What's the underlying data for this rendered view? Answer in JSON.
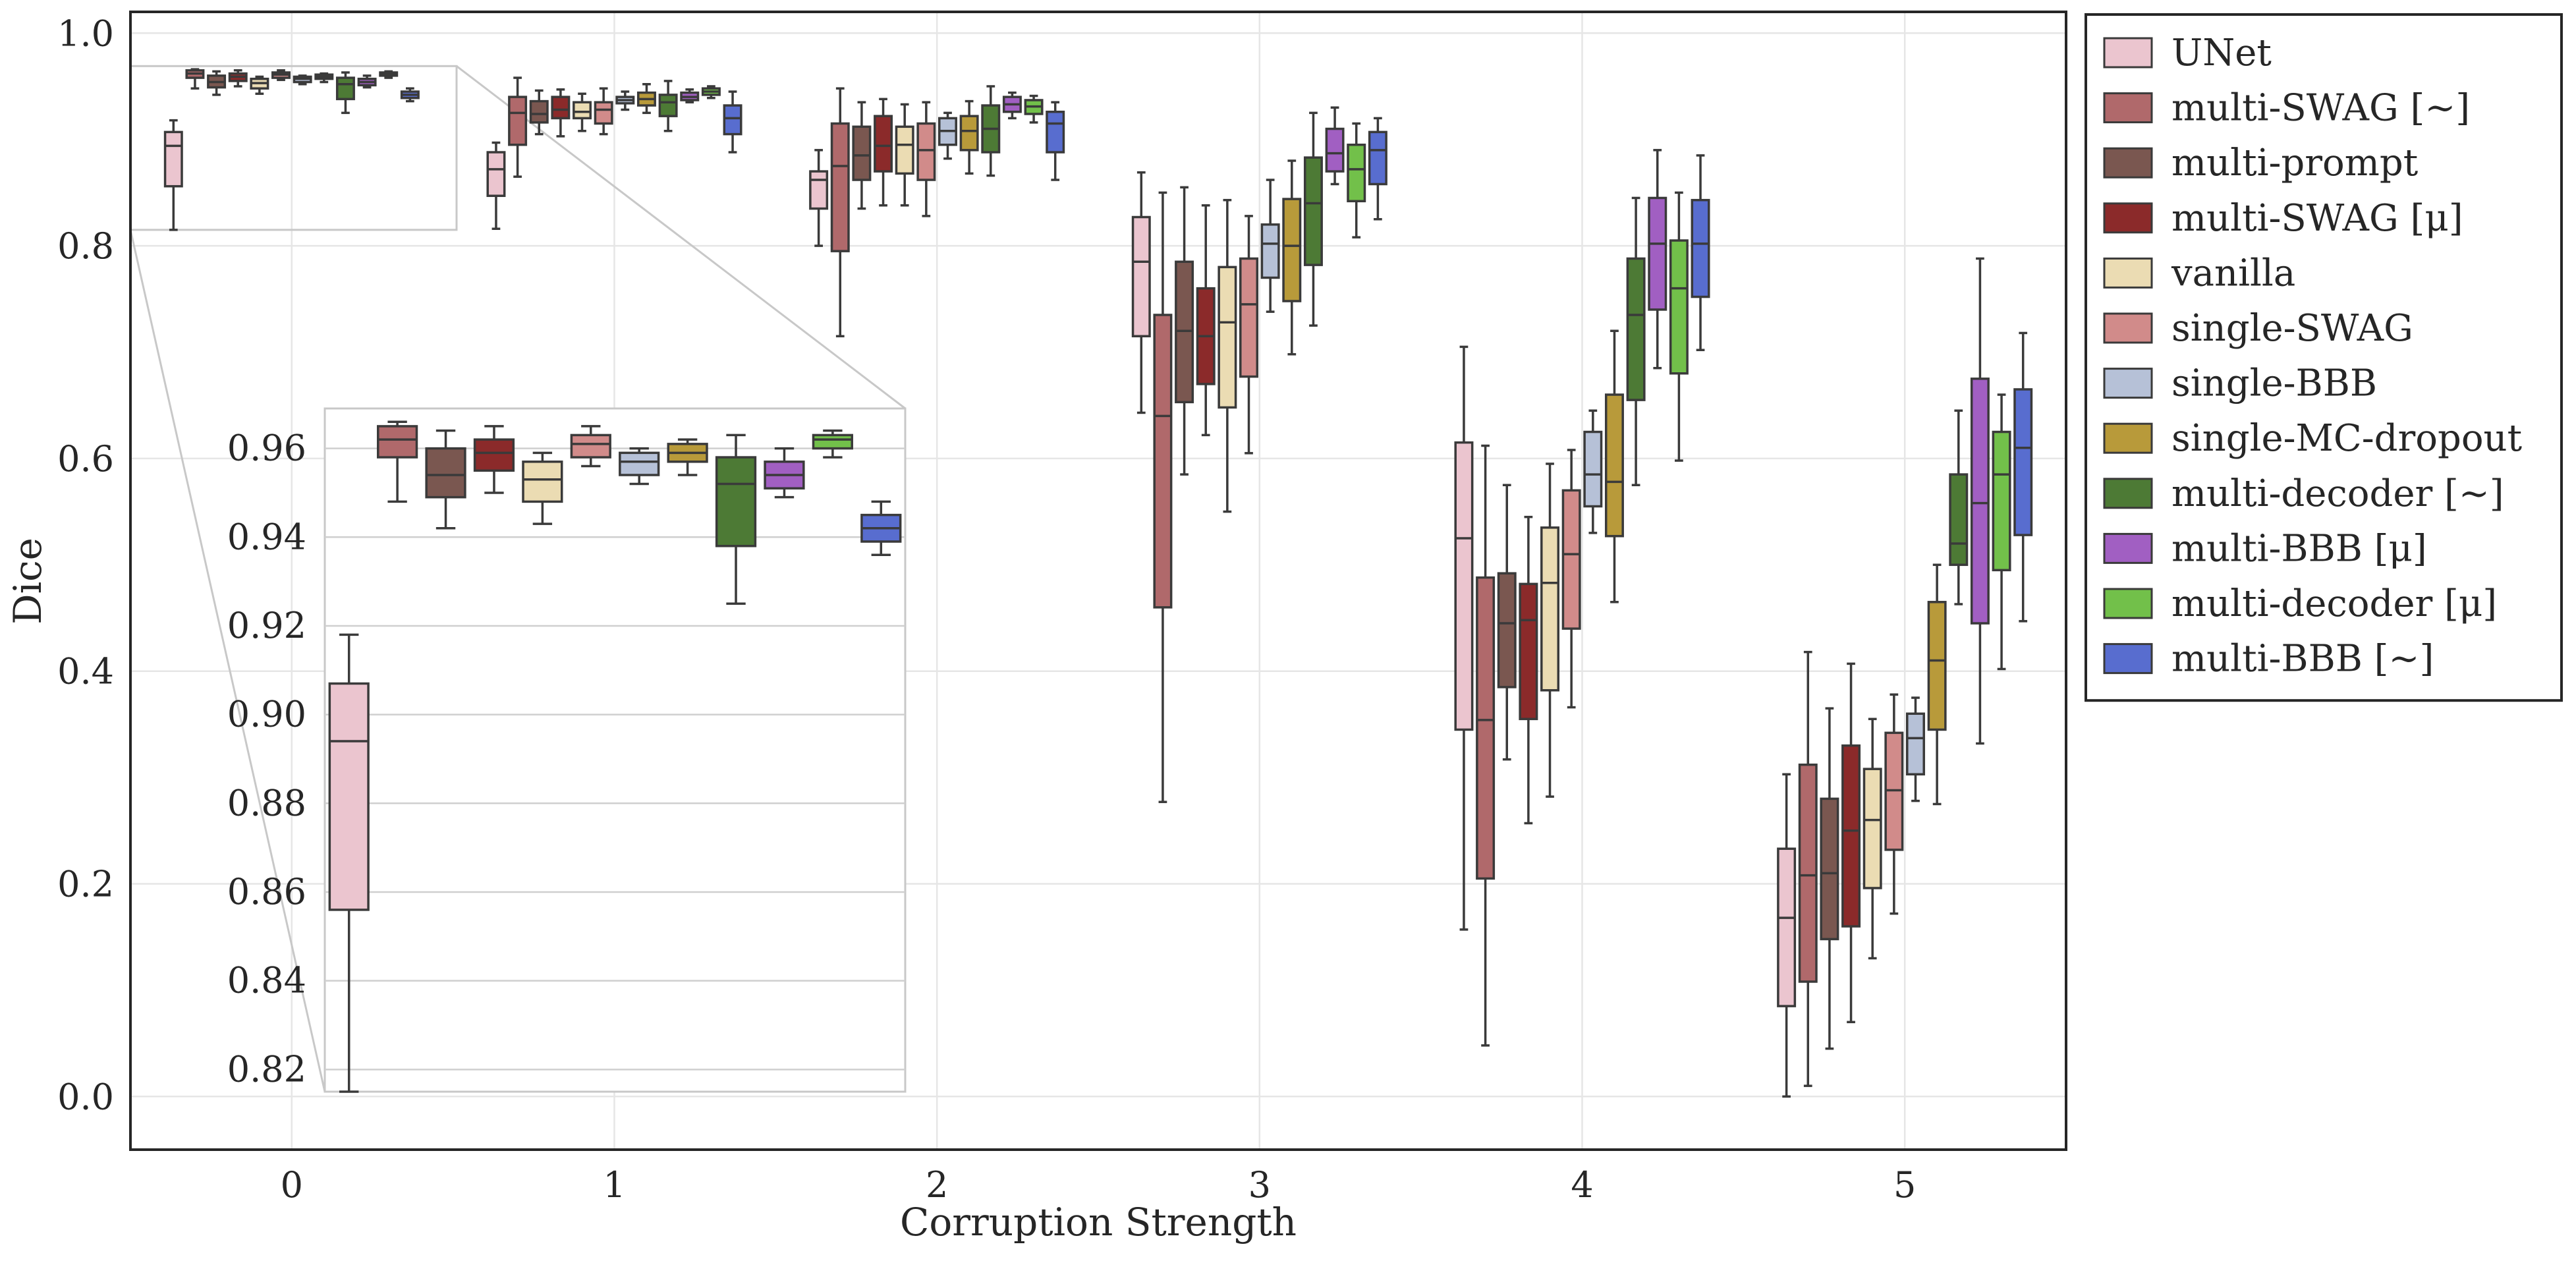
{
  "chart_data": {
    "type": "box",
    "title": "",
    "xlabel": "Corruption Strength",
    "ylabel": "Dice",
    "ylim": [
      -0.05,
      1.02
    ],
    "yticks": [
      0.0,
      0.2,
      0.4,
      0.6,
      0.8,
      1.0
    ],
    "ytick_labels": [
      "0.0",
      "0.2",
      "0.4",
      "0.6",
      "0.8",
      "1.0"
    ],
    "categories": [
      "0",
      "1",
      "2",
      "3",
      "4",
      "5"
    ],
    "grid": true,
    "legend_position": "outside-right",
    "series": [
      {
        "name": "UNet",
        "color": "#ebc5cf",
        "boxes": [
          {
            "whislo": 0.815,
            "q1": 0.856,
            "med": 0.894,
            "q3": 0.907,
            "whishi": 0.918
          },
          {
            "whislo": 0.816,
            "q1": 0.847,
            "med": 0.872,
            "q3": 0.888,
            "whishi": 0.897
          },
          {
            "whislo": 0.8,
            "q1": 0.835,
            "med": 0.862,
            "q3": 0.87,
            "whishi": 0.89
          },
          {
            "whislo": 0.643,
            "q1": 0.715,
            "med": 0.785,
            "q3": 0.827,
            "whishi": 0.869
          },
          {
            "whislo": 0.157,
            "q1": 0.345,
            "med": 0.525,
            "q3": 0.615,
            "whishi": 0.705
          },
          {
            "whislo": 0.0,
            "q1": 0.085,
            "med": 0.168,
            "q3": 0.233,
            "whishi": 0.303
          }
        ]
      },
      {
        "name": "multi-SWAG [~]",
        "color": "#b0696b",
        "boxes": [
          {
            "whislo": 0.948,
            "q1": 0.958,
            "med": 0.962,
            "q3": 0.965,
            "whishi": 0.966
          },
          {
            "whislo": 0.865,
            "q1": 0.895,
            "med": 0.925,
            "q3": 0.94,
            "whishi": 0.958
          },
          {
            "whislo": 0.715,
            "q1": 0.795,
            "med": 0.875,
            "q3": 0.915,
            "whishi": 0.948
          },
          {
            "whislo": 0.277,
            "q1": 0.46,
            "med": 0.64,
            "q3": 0.735,
            "whishi": 0.85
          },
          {
            "whislo": 0.048,
            "q1": 0.205,
            "med": 0.354,
            "q3": 0.488,
            "whishi": 0.612
          },
          {
            "whislo": 0.01,
            "q1": 0.108,
            "med": 0.208,
            "q3": 0.312,
            "whishi": 0.418
          }
        ]
      },
      {
        "name": "multi-prompt",
        "color": "#7a5750",
        "boxes": [
          {
            "whislo": 0.942,
            "q1": 0.949,
            "med": 0.954,
            "q3": 0.96,
            "whishi": 0.964
          },
          {
            "whislo": 0.905,
            "q1": 0.916,
            "med": 0.924,
            "q3": 0.936,
            "whishi": 0.946
          },
          {
            "whislo": 0.835,
            "q1": 0.862,
            "med": 0.885,
            "q3": 0.912,
            "whishi": 0.935
          },
          {
            "whislo": 0.585,
            "q1": 0.653,
            "med": 0.72,
            "q3": 0.785,
            "whishi": 0.855
          },
          {
            "whislo": 0.317,
            "q1": 0.385,
            "med": 0.445,
            "q3": 0.492,
            "whishi": 0.575
          },
          {
            "whislo": 0.045,
            "q1": 0.148,
            "med": 0.21,
            "q3": 0.28,
            "whishi": 0.365
          }
        ]
      },
      {
        "name": "multi-SWAG [μ]",
        "color": "#8b2a2a",
        "boxes": [
          {
            "whislo": 0.95,
            "q1": 0.955,
            "med": 0.959,
            "q3": 0.962,
            "whishi": 0.965
          },
          {
            "whislo": 0.903,
            "q1": 0.92,
            "med": 0.928,
            "q3": 0.94,
            "whishi": 0.947
          },
          {
            "whislo": 0.838,
            "q1": 0.87,
            "med": 0.894,
            "q3": 0.922,
            "whishi": 0.938
          },
          {
            "whislo": 0.622,
            "q1": 0.67,
            "med": 0.715,
            "q3": 0.76,
            "whishi": 0.838
          },
          {
            "whislo": 0.257,
            "q1": 0.355,
            "med": 0.448,
            "q3": 0.482,
            "whishi": 0.545
          },
          {
            "whislo": 0.07,
            "q1": 0.16,
            "med": 0.25,
            "q3": 0.33,
            "whishi": 0.407
          }
        ]
      },
      {
        "name": "vanilla",
        "color": "#ebdcb3",
        "boxes": [
          {
            "whislo": 0.943,
            "q1": 0.948,
            "med": 0.953,
            "q3": 0.957,
            "whishi": 0.959
          },
          {
            "whislo": 0.908,
            "q1": 0.92,
            "med": 0.926,
            "q3": 0.935,
            "whishi": 0.943
          },
          {
            "whislo": 0.838,
            "q1": 0.868,
            "med": 0.895,
            "q3": 0.912,
            "whishi": 0.933
          },
          {
            "whislo": 0.55,
            "q1": 0.648,
            "med": 0.728,
            "q3": 0.78,
            "whishi": 0.843
          },
          {
            "whislo": 0.282,
            "q1": 0.382,
            "med": 0.483,
            "q3": 0.535,
            "whishi": 0.595
          },
          {
            "whislo": 0.13,
            "q1": 0.196,
            "med": 0.26,
            "q3": 0.308,
            "whishi": 0.355
          }
        ]
      },
      {
        "name": "single-SWAG",
        "color": "#d18b8a",
        "boxes": [
          {
            "whislo": 0.956,
            "q1": 0.958,
            "med": 0.961,
            "q3": 0.963,
            "whishi": 0.965
          },
          {
            "whislo": 0.905,
            "q1": 0.915,
            "med": 0.928,
            "q3": 0.935,
            "whishi": 0.948
          },
          {
            "whislo": 0.828,
            "q1": 0.862,
            "med": 0.89,
            "q3": 0.915,
            "whishi": 0.935
          },
          {
            "whislo": 0.605,
            "q1": 0.677,
            "med": 0.745,
            "q3": 0.788,
            "whishi": 0.828
          },
          {
            "whislo": 0.366,
            "q1": 0.44,
            "med": 0.51,
            "q3": 0.57,
            "whishi": 0.608
          },
          {
            "whislo": 0.172,
            "q1": 0.232,
            "med": 0.288,
            "q3": 0.342,
            "whishi": 0.378
          }
        ]
      },
      {
        "name": "single-BBB",
        "color": "#b6c1d7",
        "boxes": [
          {
            "whislo": 0.952,
            "q1": 0.954,
            "med": 0.957,
            "q3": 0.959,
            "whishi": 0.96
          },
          {
            "whislo": 0.928,
            "q1": 0.934,
            "med": 0.937,
            "q3": 0.94,
            "whishi": 0.945
          },
          {
            "whislo": 0.882,
            "q1": 0.895,
            "med": 0.908,
            "q3": 0.92,
            "whishi": 0.925
          },
          {
            "whislo": 0.738,
            "q1": 0.77,
            "med": 0.802,
            "q3": 0.82,
            "whishi": 0.862
          },
          {
            "whislo": 0.53,
            "q1": 0.555,
            "med": 0.585,
            "q3": 0.625,
            "whishi": 0.645
          },
          {
            "whislo": 0.278,
            "q1": 0.303,
            "med": 0.337,
            "q3": 0.36,
            "whishi": 0.375
          }
        ]
      },
      {
        "name": "single-MC-dropout",
        "color": "#b89a3a",
        "boxes": [
          {
            "whislo": 0.954,
            "q1": 0.957,
            "med": 0.959,
            "q3": 0.961,
            "whishi": 0.962
          },
          {
            "whislo": 0.925,
            "q1": 0.932,
            "med": 0.938,
            "q3": 0.944,
            "whishi": 0.952
          },
          {
            "whislo": 0.868,
            "q1": 0.89,
            "med": 0.908,
            "q3": 0.922,
            "whishi": 0.936
          },
          {
            "whislo": 0.698,
            "q1": 0.748,
            "med": 0.8,
            "q3": 0.844,
            "whishi": 0.88
          },
          {
            "whislo": 0.465,
            "q1": 0.527,
            "med": 0.578,
            "q3": 0.66,
            "whishi": 0.72
          },
          {
            "whislo": 0.275,
            "q1": 0.345,
            "med": 0.41,
            "q3": 0.465,
            "whishi": 0.5
          }
        ]
      },
      {
        "name": "multi-decoder [~]",
        "color": "#4d7a35",
        "boxes": [
          {
            "whislo": 0.925,
            "q1": 0.938,
            "med": 0.952,
            "q3": 0.958,
            "whishi": 0.963
          },
          {
            "whislo": 0.908,
            "q1": 0.922,
            "med": 0.935,
            "q3": 0.942,
            "whishi": 0.955
          },
          {
            "whislo": 0.866,
            "q1": 0.888,
            "med": 0.91,
            "q3": 0.932,
            "whishi": 0.95
          },
          {
            "whislo": 0.725,
            "q1": 0.782,
            "med": 0.84,
            "q3": 0.883,
            "whishi": 0.925
          },
          {
            "whislo": 0.575,
            "q1": 0.655,
            "med": 0.735,
            "q3": 0.788,
            "whishi": 0.845
          },
          {
            "whislo": 0.463,
            "q1": 0.5,
            "med": 0.52,
            "q3": 0.585,
            "whishi": 0.645
          }
        ]
      },
      {
        "name": "multi-BBB [μ]",
        "color": "#a15fc2",
        "boxes": [
          {
            "whislo": 0.949,
            "q1": 0.951,
            "med": 0.954,
            "q3": 0.957,
            "whishi": 0.96
          },
          {
            "whislo": 0.935,
            "q1": 0.937,
            "med": 0.94,
            "q3": 0.944,
            "whishi": 0.947
          },
          {
            "whislo": 0.92,
            "q1": 0.926,
            "med": 0.933,
            "q3": 0.94,
            "whishi": 0.944
          },
          {
            "whislo": 0.858,
            "q1": 0.87,
            "med": 0.887,
            "q3": 0.91,
            "whishi": 0.93
          },
          {
            "whislo": 0.685,
            "q1": 0.74,
            "med": 0.802,
            "q3": 0.845,
            "whishi": 0.89
          },
          {
            "whislo": 0.332,
            "q1": 0.445,
            "med": 0.558,
            "q3": 0.675,
            "whishi": 0.788
          }
        ]
      },
      {
        "name": "multi-decoder [μ]",
        "color": "#72c04a",
        "boxes": [
          {
            "whislo": 0.958,
            "q1": 0.96,
            "med": 0.962,
            "q3": 0.963,
            "whishi": 0.964
          },
          {
            "whislo": 0.939,
            "q1": 0.942,
            "med": 0.945,
            "q3": 0.948,
            "whishi": 0.95
          },
          {
            "whislo": 0.916,
            "q1": 0.924,
            "med": 0.931,
            "q3": 0.937,
            "whishi": 0.941
          },
          {
            "whislo": 0.808,
            "q1": 0.842,
            "med": 0.872,
            "q3": 0.895,
            "whishi": 0.915
          },
          {
            "whislo": 0.598,
            "q1": 0.68,
            "med": 0.76,
            "q3": 0.805,
            "whishi": 0.85
          },
          {
            "whislo": 0.402,
            "q1": 0.495,
            "med": 0.585,
            "q3": 0.625,
            "whishi": 0.66
          }
        ]
      },
      {
        "name": "multi-BBB [~]",
        "color": "#586dcf",
        "boxes": [
          {
            "whislo": 0.936,
            "q1": 0.939,
            "med": 0.942,
            "q3": 0.945,
            "whishi": 0.948
          },
          {
            "whislo": 0.888,
            "q1": 0.905,
            "med": 0.92,
            "q3": 0.932,
            "whishi": 0.945
          },
          {
            "whislo": 0.862,
            "q1": 0.888,
            "med": 0.915,
            "q3": 0.926,
            "whishi": 0.935
          },
          {
            "whislo": 0.825,
            "q1": 0.858,
            "med": 0.89,
            "q3": 0.907,
            "whishi": 0.92
          },
          {
            "whislo": 0.702,
            "q1": 0.752,
            "med": 0.802,
            "q3": 0.843,
            "whishi": 0.885
          },
          {
            "whislo": 0.447,
            "q1": 0.528,
            "med": 0.61,
            "q3": 0.665,
            "whishi": 0.718
          }
        ]
      }
    ],
    "inset": {
      "category": "0",
      "ylim": [
        0.815,
        0.969
      ],
      "yticks": [
        0.82,
        0.84,
        0.86,
        0.88,
        0.9,
        0.92,
        0.94,
        0.96
      ],
      "ytick_labels": [
        "0.82",
        "0.84",
        "0.86",
        "0.88",
        "0.90",
        "0.92",
        "0.94",
        "0.96"
      ]
    }
  }
}
